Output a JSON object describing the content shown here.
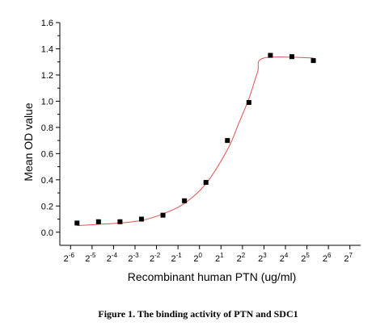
{
  "caption": "Figure 1. The binding activity of PTN and SDC1",
  "chart_data": {
    "type": "scatter",
    "xlabel": "Recombinant human PTN (ug/ml)",
    "ylabel": "Mean OD value",
    "x_scale": "log2",
    "x_ticks": [
      {
        "base": "2",
        "exp": "-6",
        "value": -6
      },
      {
        "base": "2",
        "exp": "-5",
        "value": -5
      },
      {
        "base": "2",
        "exp": "-4",
        "value": -4
      },
      {
        "base": "2",
        "exp": "-3",
        "value": -3
      },
      {
        "base": "2",
        "exp": "-2",
        "value": -2
      },
      {
        "base": "2",
        "exp": "-1",
        "value": -1
      },
      {
        "base": "2",
        "exp": "0",
        "value": 0
      },
      {
        "base": "2",
        "exp": "1",
        "value": 1
      },
      {
        "base": "2",
        "exp": "2",
        "value": 2
      },
      {
        "base": "2",
        "exp": "3",
        "value": 3
      },
      {
        "base": "2",
        "exp": "4",
        "value": 4
      },
      {
        "base": "2",
        "exp": "5",
        "value": 5
      },
      {
        "base": "2",
        "exp": "6",
        "value": 6
      },
      {
        "base": "2",
        "exp": "7",
        "value": 7
      }
    ],
    "y_ticks": [
      "0.0",
      "0.2",
      "0.4",
      "0.6",
      "0.8",
      "1.0",
      "1.2",
      "1.4",
      "1.6"
    ],
    "xlim_log2": [
      -6.5,
      7.5
    ],
    "ylim": [
      -0.1,
      1.6
    ],
    "grid": false,
    "series": [
      {
        "marker": "square",
        "color": "#000000",
        "points": [
          {
            "x_log2": -5.7,
            "y": 0.07
          },
          {
            "x_log2": -4.7,
            "y": 0.08
          },
          {
            "x_log2": -3.7,
            "y": 0.08
          },
          {
            "x_log2": -2.7,
            "y": 0.1
          },
          {
            "x_log2": -1.7,
            "y": 0.13
          },
          {
            "x_log2": -0.7,
            "y": 0.24
          },
          {
            "x_log2": 0.3,
            "y": 0.38
          },
          {
            "x_log2": 1.3,
            "y": 0.7
          },
          {
            "x_log2": 2.3,
            "y": 0.99
          },
          {
            "x_log2": 3.3,
            "y": 1.35
          },
          {
            "x_log2": 4.3,
            "y": 1.34
          },
          {
            "x_log2": 5.3,
            "y": 1.31
          }
        ]
      }
    ],
    "fit_curve": {
      "color": "#e05050",
      "points": [
        {
          "x_log2": -5.7,
          "y": 0.05
        },
        {
          "x_log2": -4.7,
          "y": 0.06
        },
        {
          "x_log2": -3.7,
          "y": 0.07
        },
        {
          "x_log2": -2.7,
          "y": 0.09
        },
        {
          "x_log2": -1.7,
          "y": 0.14
        },
        {
          "x_log2": -0.7,
          "y": 0.22
        },
        {
          "x_log2": 0.3,
          "y": 0.37
        },
        {
          "x_log2": 1.3,
          "y": 0.63
        },
        {
          "x_log2": 1.8,
          "y": 0.82
        },
        {
          "x_log2": 2.3,
          "y": 1.02
        },
        {
          "x_log2": 2.7,
          "y": 1.22
        },
        {
          "x_log2": 3.0,
          "y": 1.33
        },
        {
          "x_log2": 5.3,
          "y": 1.33
        }
      ]
    }
  }
}
